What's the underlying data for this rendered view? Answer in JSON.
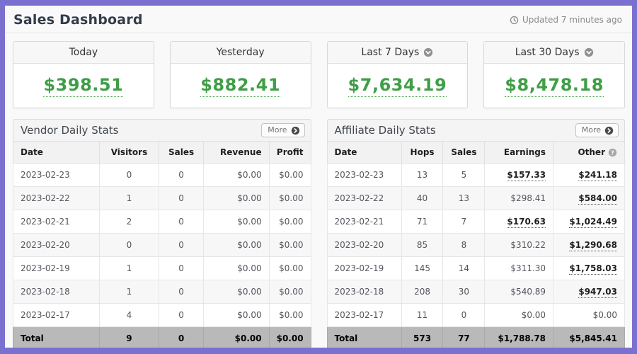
{
  "page": {
    "title": "Sales Dashboard",
    "updated": "Updated 7 minutes ago"
  },
  "colors": {
    "frame_purple": "#7a70d0",
    "money_green": "#3f9e46",
    "total_row_gray": "#b9b9b9"
  },
  "stat_cards": [
    {
      "label": "Today",
      "value": "$398.51",
      "has_dropdown": false
    },
    {
      "label": "Yesterday",
      "value": "$882.41",
      "has_dropdown": false
    },
    {
      "label": "Last 7 Days",
      "value": "$7,634.19",
      "has_dropdown": true
    },
    {
      "label": "Last 30 Days",
      "value": "$8,478.18",
      "has_dropdown": true
    }
  ],
  "vendor_table": {
    "title": "Vendor Daily Stats",
    "more_label": "More",
    "columns": [
      "Date",
      "Visitors",
      "Sales",
      "Revenue",
      "Profit"
    ],
    "rows": [
      {
        "cells": [
          "2023-02-23",
          "0",
          "0",
          "$0.00",
          "$0.00"
        ],
        "link_cols": []
      },
      {
        "cells": [
          "2023-02-22",
          "1",
          "0",
          "$0.00",
          "$0.00"
        ],
        "link_cols": []
      },
      {
        "cells": [
          "2023-02-21",
          "2",
          "0",
          "$0.00",
          "$0.00"
        ],
        "link_cols": []
      },
      {
        "cells": [
          "2023-02-20",
          "0",
          "0",
          "$0.00",
          "$0.00"
        ],
        "link_cols": []
      },
      {
        "cells": [
          "2023-02-19",
          "1",
          "0",
          "$0.00",
          "$0.00"
        ],
        "link_cols": []
      },
      {
        "cells": [
          "2023-02-18",
          "1",
          "0",
          "$0.00",
          "$0.00"
        ],
        "link_cols": []
      },
      {
        "cells": [
          "2023-02-17",
          "4",
          "0",
          "$0.00",
          "$0.00"
        ],
        "link_cols": []
      }
    ],
    "total": [
      "Total",
      "9",
      "0",
      "$0.00",
      "$0.00"
    ]
  },
  "affiliate_table": {
    "title": "Affiliate Daily Stats",
    "more_label": "More",
    "columns": [
      "Date",
      "Hops",
      "Sales",
      "Earnings",
      "Other"
    ],
    "rows": [
      {
        "cells": [
          "2023-02-23",
          "13",
          "5",
          "$157.33",
          "$241.18"
        ],
        "link_cols": [
          3,
          4
        ]
      },
      {
        "cells": [
          "2023-02-22",
          "40",
          "13",
          "$298.41",
          "$584.00"
        ],
        "link_cols": [
          4
        ]
      },
      {
        "cells": [
          "2023-02-21",
          "71",
          "7",
          "$170.63",
          "$1,024.49"
        ],
        "link_cols": [
          3,
          4
        ]
      },
      {
        "cells": [
          "2023-02-20",
          "85",
          "8",
          "$310.22",
          "$1,290.68"
        ],
        "link_cols": [
          4
        ]
      },
      {
        "cells": [
          "2023-02-19",
          "145",
          "14",
          "$311.30",
          "$1,758.03"
        ],
        "link_cols": [
          4
        ]
      },
      {
        "cells": [
          "2023-02-18",
          "208",
          "30",
          "$540.89",
          "$947.03"
        ],
        "link_cols": [
          4
        ]
      },
      {
        "cells": [
          "2023-02-17",
          "11",
          "0",
          "$0.00",
          "$0.00"
        ],
        "link_cols": []
      }
    ],
    "total": [
      "Total",
      "573",
      "77",
      "$1,788.78",
      "$5,845.41"
    ]
  }
}
